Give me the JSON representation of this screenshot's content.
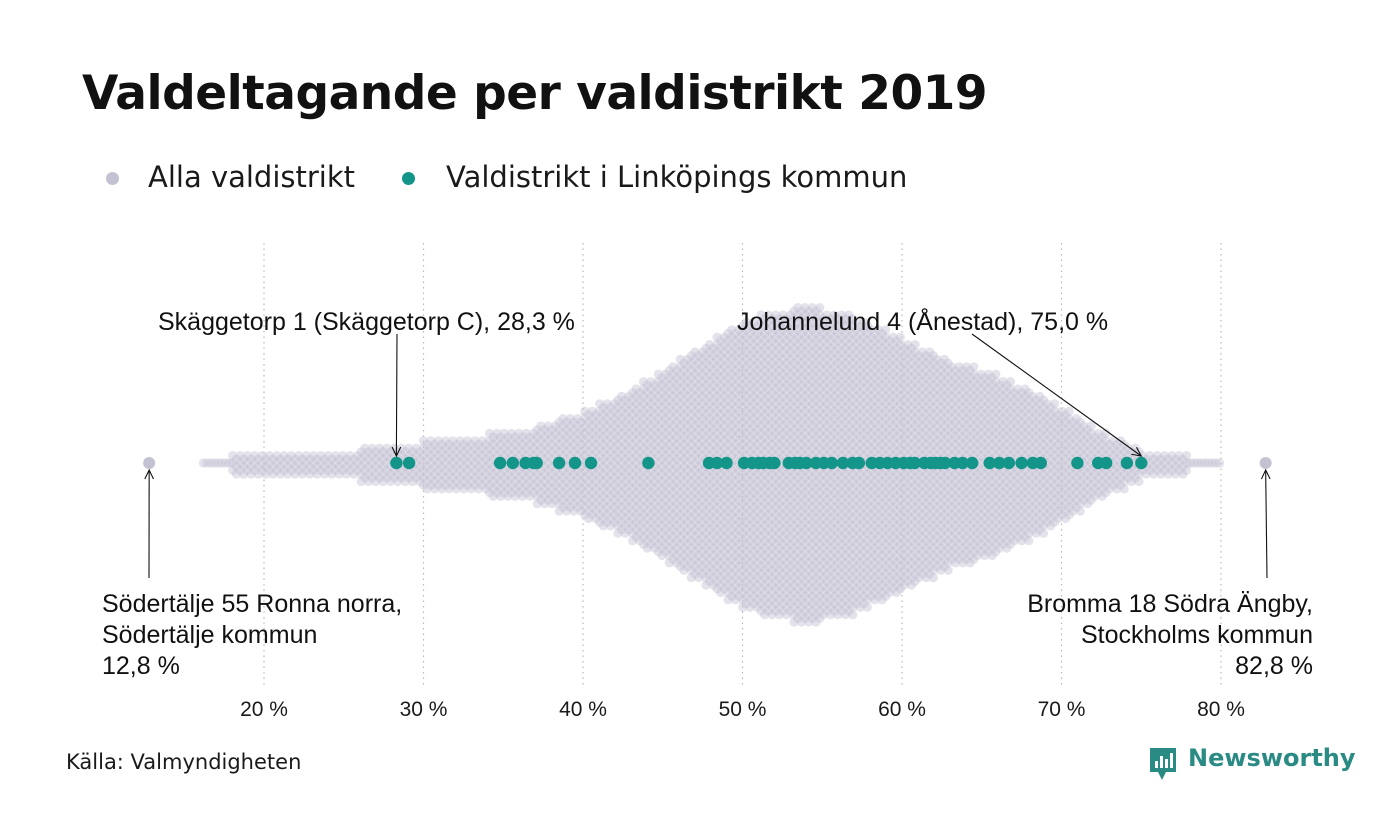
{
  "title": "Valdeltagande per valdistrikt 2019",
  "legend": {
    "all": {
      "label": "Alla valdistrikt",
      "color": "#c3c2d2"
    },
    "highlight": {
      "label": "Valdistrikt i Linköpings kommun",
      "color": "#14958a"
    }
  },
  "source": "Källa: Valmyndigheten",
  "logo": {
    "text": "Newsworthy",
    "icon": "newsworthy-logo-icon",
    "color": "#2a8a84"
  },
  "chart_data": {
    "type": "scatter",
    "subtype": "beeswarm",
    "xlim": [
      8,
      88
    ],
    "x_ticks": [
      {
        "value": 20,
        "label": "20 %"
      },
      {
        "value": 30,
        "label": "30 %"
      },
      {
        "value": 40,
        "label": "40 %"
      },
      {
        "value": 50,
        "label": "50 %"
      },
      {
        "value": 60,
        "label": "60 %"
      },
      {
        "value": 70,
        "label": "70 %"
      },
      {
        "value": 80,
        "label": "80 %"
      }
    ],
    "grid": "vertical dotted",
    "density_profile": [
      [
        16,
        0
      ],
      [
        18,
        1
      ],
      [
        22,
        1
      ],
      [
        26,
        2
      ],
      [
        30,
        3
      ],
      [
        34,
        4
      ],
      [
        37,
        5
      ],
      [
        40,
        7
      ],
      [
        43,
        10
      ],
      [
        46,
        14
      ],
      [
        49,
        18
      ],
      [
        51,
        20
      ],
      [
        53,
        21
      ],
      [
        54,
        22
      ],
      [
        55,
        21
      ],
      [
        57,
        20
      ],
      [
        60,
        17
      ],
      [
        63,
        14
      ],
      [
        66,
        12
      ],
      [
        69,
        9
      ],
      [
        72,
        5
      ],
      [
        75,
        2
      ],
      [
        78,
        1
      ],
      [
        80,
        0
      ]
    ],
    "series": [
      {
        "name": "Valdistrikt i Linköpings kommun",
        "color": "#14958a",
        "values": [
          28.3,
          29.1,
          34.8,
          35.6,
          36.4,
          36.9,
          37.1,
          38.5,
          39.5,
          40.5,
          44.1,
          47.9,
          48.4,
          49.0,
          50.1,
          50.6,
          51.0,
          51.3,
          51.7,
          52.0,
          52.9,
          53.3,
          53.6,
          54.0,
          54.6,
          55.1,
          55.6,
          56.3,
          56.9,
          57.3,
          58.1,
          58.6,
          59.1,
          59.6,
          60.1,
          60.5,
          60.8,
          61.4,
          61.8,
          62.1,
          62.4,
          62.7,
          63.3,
          63.8,
          64.4,
          65.5,
          66.1,
          66.7,
          67.5,
          68.2,
          68.7,
          71.0,
          72.3,
          72.8,
          74.1,
          75.0
        ]
      }
    ],
    "annotations": [
      {
        "label": "Skäggetorp 1 (Skäggetorp C), 28,3 %",
        "value": 28.3,
        "position": "above",
        "highlighted": true
      },
      {
        "label": "Johannelund 4 (Ånestad), 75,0 %",
        "value": 75.0,
        "position": "above",
        "highlighted": true
      },
      {
        "lines": [
          "Södertälje 55 Ronna norra,",
          "Södertälje kommun",
          "12,8 %"
        ],
        "value": 12.8,
        "position": "below",
        "align": "left",
        "highlighted": false
      },
      {
        "lines": [
          "Bromma 18 Södra Ängby,",
          "Stockholms kommun",
          "82,8 %"
        ],
        "value": 82.8,
        "position": "below",
        "align": "right",
        "highlighted": false
      }
    ]
  }
}
